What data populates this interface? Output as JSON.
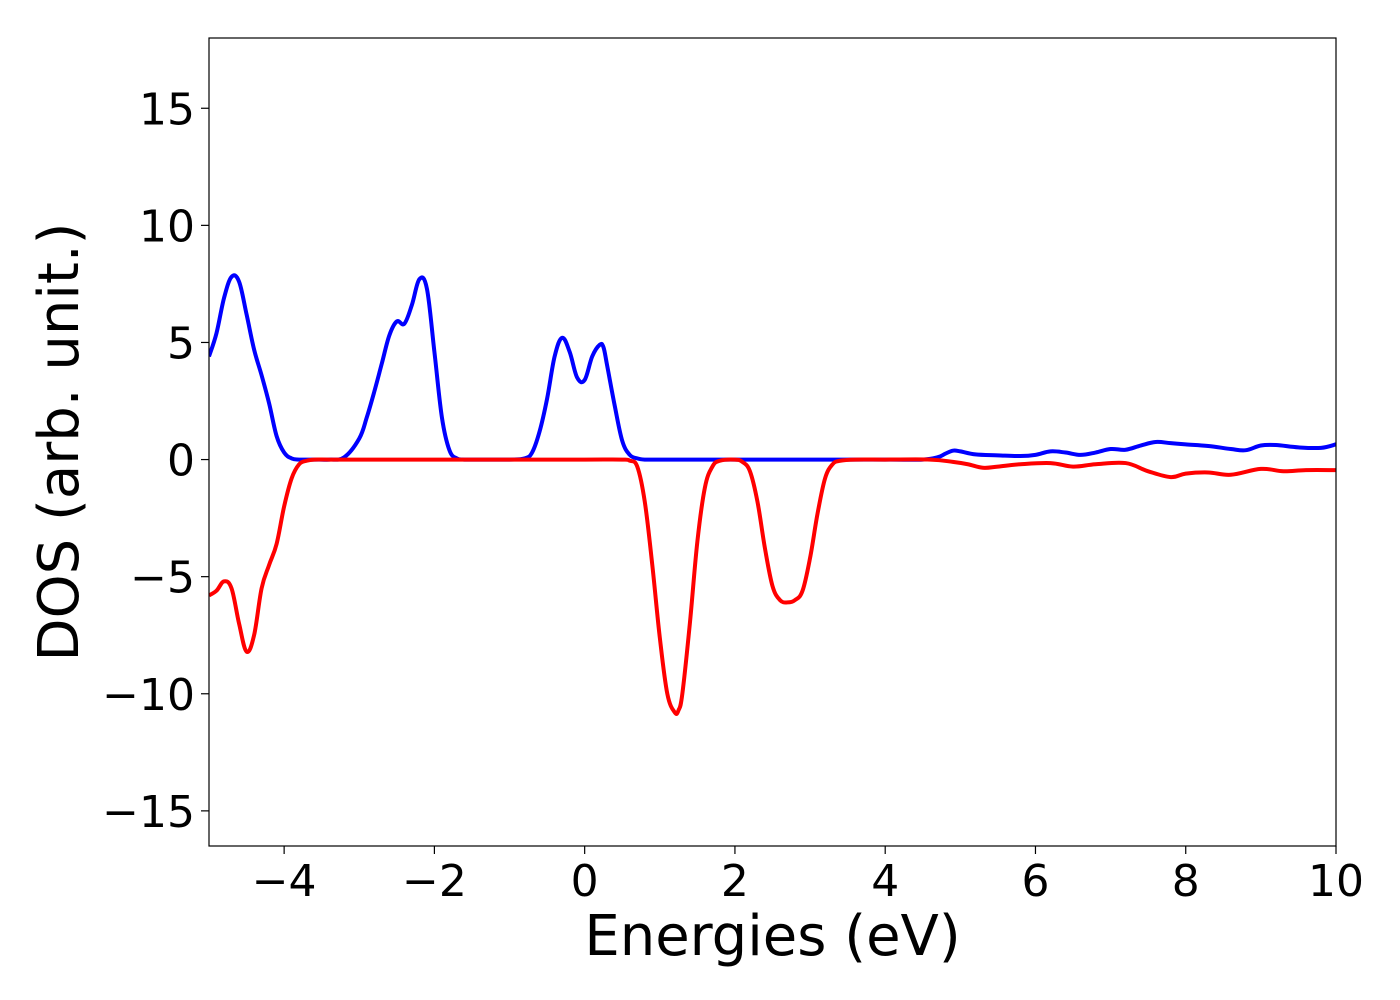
{
  "chart_data": {
    "type": "line",
    "title": "",
    "xlabel": "Energies (eV)",
    "ylabel": "DOS (arb. unit.)",
    "xlim": [
      -5,
      10
    ],
    "ylim": [
      -16.5,
      18
    ],
    "xticks": [
      -4,
      -2,
      0,
      2,
      4,
      6,
      8,
      10
    ],
    "yticks": [
      -15,
      -10,
      -5,
      0,
      5,
      10,
      15
    ],
    "xtick_labels": [
      "−4",
      "−2",
      "0",
      "2",
      "4",
      "6",
      "8",
      "10"
    ],
    "ytick_labels": [
      "−15",
      "−10",
      "−5",
      "0",
      "5",
      "10",
      "15"
    ],
    "grid": false,
    "legend": "none",
    "series": [
      {
        "color": "#0000ff",
        "x": [
          -5.0,
          -4.9,
          -4.8,
          -4.7,
          -4.6,
          -4.5,
          -4.4,
          -4.3,
          -4.2,
          -4.1,
          -4.0,
          -3.9,
          -3.8,
          -3.6,
          -3.4,
          -3.2,
          -3.0,
          -2.9,
          -2.8,
          -2.7,
          -2.6,
          -2.5,
          -2.4,
          -2.3,
          -2.2,
          -2.1,
          -2.0,
          -1.9,
          -1.8,
          -1.7,
          -1.6,
          -1.4,
          -1.0,
          -0.8,
          -0.7,
          -0.6,
          -0.5,
          -0.4,
          -0.3,
          -0.2,
          -0.1,
          0.0,
          0.1,
          0.2,
          0.25,
          0.3,
          0.4,
          0.5,
          0.6,
          0.7,
          0.8,
          1.0,
          2.0,
          3.0,
          4.0,
          4.5,
          4.7,
          4.8,
          4.9,
          5.0,
          5.2,
          5.5,
          5.8,
          6.0,
          6.2,
          6.4,
          6.6,
          6.8,
          7.0,
          7.2,
          7.4,
          7.6,
          7.8,
          8.0,
          8.3,
          8.6,
          8.8,
          9.0,
          9.2,
          9.5,
          9.8,
          10.0
        ],
        "values": [
          4.4,
          5.4,
          6.9,
          7.8,
          7.6,
          6.2,
          4.7,
          3.6,
          2.4,
          1.0,
          0.3,
          0.05,
          0.0,
          0.0,
          0.0,
          0.1,
          0.9,
          1.8,
          2.9,
          4.1,
          5.3,
          5.9,
          5.8,
          6.6,
          7.7,
          7.3,
          4.6,
          1.8,
          0.4,
          0.05,
          0.0,
          0.0,
          0.0,
          0.05,
          0.3,
          1.2,
          2.6,
          4.4,
          5.2,
          4.6,
          3.5,
          3.4,
          4.4,
          4.9,
          4.8,
          4.0,
          2.3,
          0.8,
          0.2,
          0.05,
          0.0,
          0.0,
          0.0,
          0.0,
          0.0,
          0.0,
          0.1,
          0.25,
          0.38,
          0.35,
          0.22,
          0.18,
          0.15,
          0.2,
          0.35,
          0.3,
          0.2,
          0.3,
          0.45,
          0.42,
          0.6,
          0.75,
          0.7,
          0.65,
          0.58,
          0.45,
          0.4,
          0.6,
          0.62,
          0.52,
          0.5,
          0.65
        ]
      },
      {
        "color": "#ff0000",
        "x": [
          -5.0,
          -4.9,
          -4.8,
          -4.7,
          -4.6,
          -4.5,
          -4.4,
          -4.3,
          -4.2,
          -4.1,
          -4.0,
          -3.9,
          -3.8,
          -3.7,
          -3.6,
          -3.4,
          -3.0,
          -2.0,
          -1.0,
          0.0,
          0.5,
          0.6,
          0.7,
          0.8,
          0.9,
          1.0,
          1.1,
          1.2,
          1.25,
          1.3,
          1.4,
          1.5,
          1.6,
          1.7,
          1.8,
          2.0,
          2.1,
          2.2,
          2.3,
          2.4,
          2.5,
          2.6,
          2.7,
          2.8,
          2.9,
          3.0,
          3.1,
          3.2,
          3.3,
          3.4,
          3.6,
          4.0,
          4.6,
          4.9,
          5.1,
          5.3,
          5.5,
          5.8,
          6.2,
          6.5,
          6.8,
          7.2,
          7.5,
          7.8,
          8.0,
          8.3,
          8.6,
          9.0,
          9.3,
          9.6,
          10.0
        ],
        "values": [
          -5.8,
          -5.6,
          -5.2,
          -5.5,
          -7.0,
          -8.2,
          -7.5,
          -5.5,
          -4.5,
          -3.6,
          -2.0,
          -0.8,
          -0.2,
          -0.05,
          0.0,
          0.0,
          0.0,
          0.0,
          0.0,
          0.0,
          0.0,
          -0.05,
          -0.3,
          -1.8,
          -4.5,
          -7.6,
          -10.0,
          -10.8,
          -10.7,
          -10.0,
          -7.0,
          -3.5,
          -1.2,
          -0.3,
          -0.05,
          0.0,
          -0.1,
          -0.5,
          -1.8,
          -3.8,
          -5.4,
          -6.0,
          -6.1,
          -6.0,
          -5.6,
          -4.2,
          -2.3,
          -0.8,
          -0.2,
          -0.05,
          0.0,
          0.0,
          0.0,
          -0.1,
          -0.2,
          -0.35,
          -0.3,
          -0.2,
          -0.15,
          -0.3,
          -0.2,
          -0.15,
          -0.5,
          -0.75,
          -0.6,
          -0.55,
          -0.65,
          -0.4,
          -0.5,
          -0.45,
          -0.45
        ]
      }
    ]
  }
}
